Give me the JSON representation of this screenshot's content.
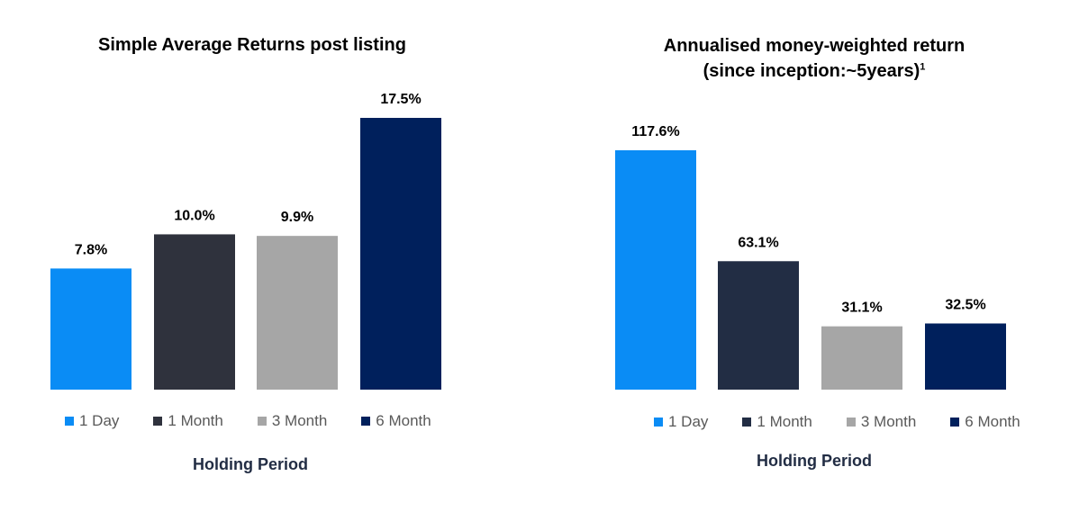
{
  "chart_data": [
    {
      "type": "bar",
      "title": "Simple Average Returns post listing",
      "categories": [
        "1 Day",
        "1 Month",
        "3 Month",
        "6 Month"
      ],
      "values": [
        7.8,
        10.0,
        9.9,
        17.5
      ],
      "value_labels": [
        "7.8%",
        "10.0%",
        "9.9%",
        "17.5%"
      ],
      "xlabel": "Holding Period",
      "ylabel": "",
      "ylim": [
        0,
        17.5
      ],
      "grid": false,
      "legend_position": "bottom",
      "colors": [
        "#0a8cf5",
        "#2f323d",
        "#a6a6a6",
        "#00205c"
      ]
    },
    {
      "type": "bar",
      "title": "Annualised money-weighted return",
      "subtitle": "(since inception:~5years)",
      "subtitle_footnote": "1",
      "categories": [
        "1 Day",
        "1 Month",
        "3 Month",
        "6 Month"
      ],
      "values": [
        117.6,
        63.1,
        31.1,
        32.5
      ],
      "value_labels": [
        "117.6%",
        "63.1%",
        "31.1%",
        "32.5%"
      ],
      "xlabel": "Holding Period",
      "ylabel": "",
      "ylim": [
        0,
        117.6
      ],
      "grid": false,
      "legend_position": "bottom",
      "colors": [
        "#0a8cf5",
        "#222d44",
        "#a6a6a6",
        "#00205c"
      ]
    }
  ]
}
